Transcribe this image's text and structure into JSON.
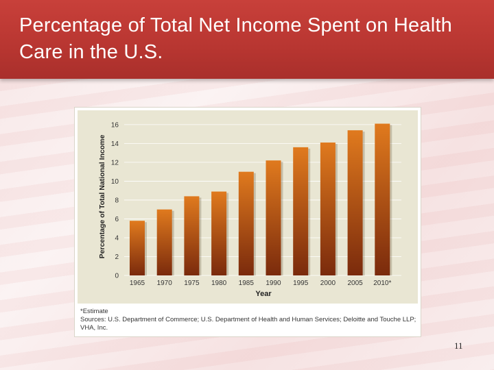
{
  "slide": {
    "title": "Percentage of Total Net Income Spent on Health Care in the U.S.",
    "page_number": "11"
  },
  "chart_data": {
    "type": "bar",
    "categories": [
      "1965",
      "1970",
      "1975",
      "1980",
      "1985",
      "1990",
      "1995",
      "2000",
      "2005",
      "2010*"
    ],
    "values": [
      5.8,
      7.0,
      8.4,
      8.9,
      11.0,
      12.2,
      13.6,
      14.1,
      15.4,
      16.1
    ],
    "xlabel": "Year",
    "ylabel": "Percentage of Total National Income",
    "yticks": [
      "0",
      "2",
      "4",
      "6",
      "8",
      "10",
      "12",
      "14",
      "16"
    ],
    "ylim": [
      0,
      16.5
    ],
    "grid": true,
    "bar_color_top": "#e07a1e",
    "bar_color_bottom": "#7a2a0c"
  },
  "notes": {
    "estimate": "*Estimate",
    "sources": "Sources: U.S. Department of Commerce; U.S. Department of Health and Human Services; Deloitte and Touche LLP; VHA, Inc."
  }
}
